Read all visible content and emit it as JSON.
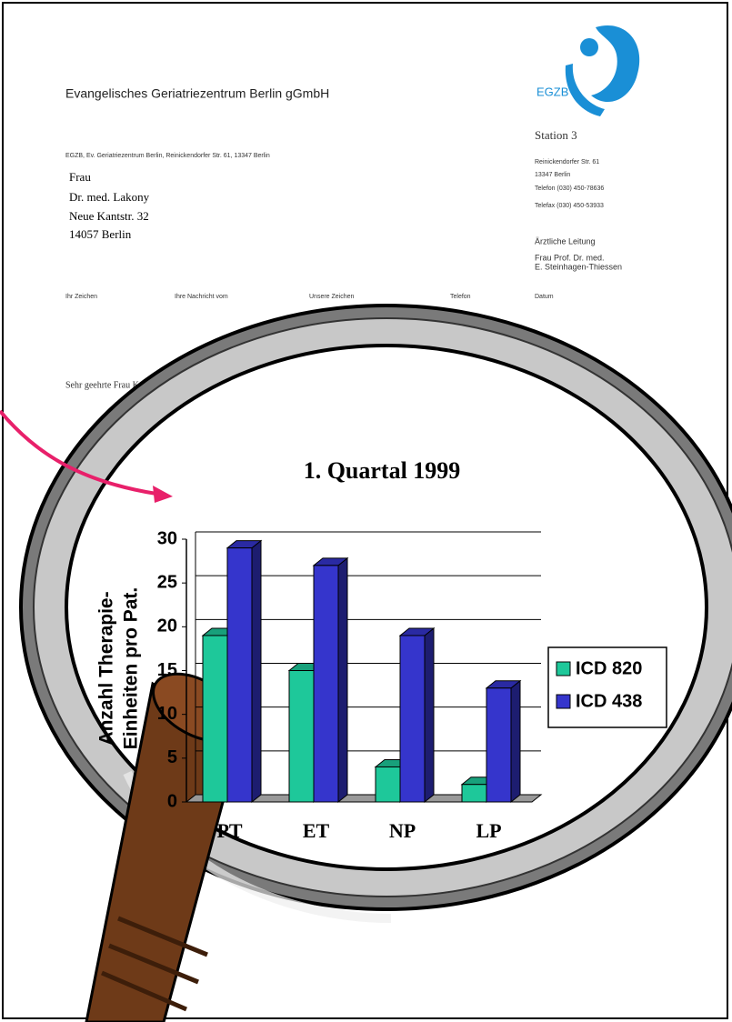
{
  "header": {
    "organization": "Evangelisches Geriatriezentrum Berlin gGmbH",
    "logo": "EGZB"
  },
  "sender_line": "EGZB, Ev. Geriatriezentrum Berlin, Reinickendorfer Str. 61, 13347 Berlin",
  "recipient": [
    "Frau",
    "Dr. med. Lakony",
    "Neue Kantstr. 32",
    "14057 Berlin"
  ],
  "station": "Station 3",
  "contact": [
    "Reinickendorfer Str. 61",
    "13347 Berlin",
    "Telefon (030) 450-78636",
    "Telefax (030) 450-53933"
  ],
  "management": [
    "Ärztliche Leitung",
    "Frau Prof. Dr. med.",
    "E. Steinhagen-Thiessen"
  ],
  "reference_fields": [
    "Ihr Zeichen",
    "Ihre Nachricht vom",
    "Unsere Zeichen",
    "Telefon",
    "Datum"
  ],
  "salutation": "Sehr geehrte Frau K",
  "chart_data": {
    "type": "bar",
    "title": "1. Quartal 1999",
    "ylabel": [
      "Anzahl Therapie-",
      "Einheiten pro Pat."
    ],
    "categories": [
      "PT",
      "ET",
      "NP",
      "LP"
    ],
    "series": [
      {
        "name": "ICD 820",
        "color": "#1ec89a",
        "values": [
          19,
          15,
          4,
          2
        ]
      },
      {
        "name": "ICD 438",
        "color": "#3535cc",
        "values": [
          29,
          27,
          19,
          13
        ]
      }
    ],
    "ylim": [
      0,
      30
    ],
    "yticks": [
      0,
      5,
      10,
      15,
      20,
      25,
      30
    ],
    "grid": true,
    "legend": "right"
  }
}
